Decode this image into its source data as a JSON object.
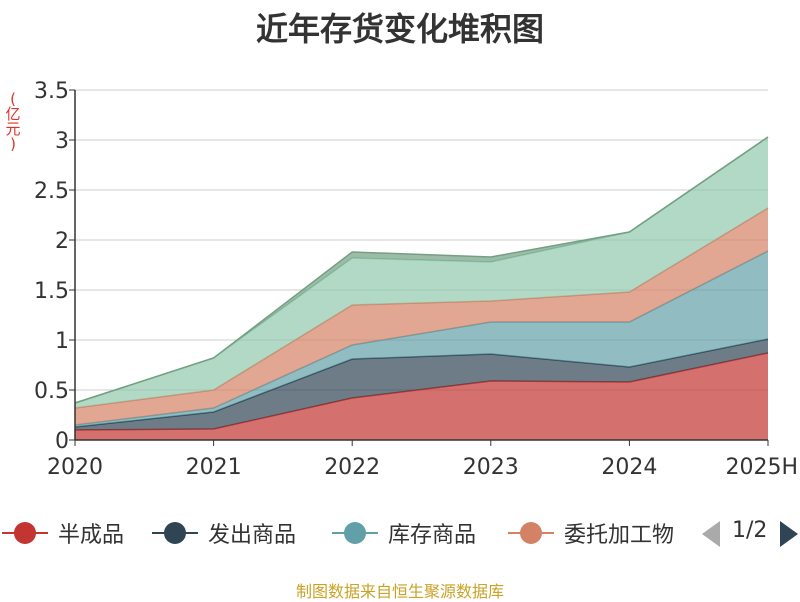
{
  "title": "近年存货变化堆积图",
  "unit_chars": [
    "(",
    "亿",
    "元",
    ")"
  ],
  "source": "制图数据来自恒生聚源数据库",
  "pager": {
    "text": "1/2"
  },
  "chart_data": {
    "type": "area",
    "stacked": true,
    "x": [
      "2020",
      "2021",
      "2022",
      "2023",
      "2024",
      "2025H"
    ],
    "ylim": [
      0,
      3.5
    ],
    "yticks": [
      "0",
      "0.5",
      "1",
      "1.5",
      "2",
      "2.5",
      "3",
      "3.5"
    ],
    "ytick_values": [
      0,
      0.5,
      1,
      1.5,
      2,
      2.5,
      3,
      3.5
    ],
    "series": [
      {
        "name": "半成品",
        "color": "#c23531",
        "values": [
          0.1,
          0.11,
          0.42,
          0.59,
          0.58,
          0.87
        ]
      },
      {
        "name": "发出商品",
        "color": "#2f4554",
        "values": [
          0.03,
          0.17,
          0.39,
          0.27,
          0.15,
          0.14
        ]
      },
      {
        "name": "库存商品",
        "color": "#61a0a8",
        "values": [
          0.02,
          0.04,
          0.14,
          0.32,
          0.45,
          0.88
        ]
      },
      {
        "name": "委托加工物",
        "color": "#d48265",
        "values": [
          0.17,
          0.18,
          0.4,
          0.21,
          0.3,
          0.43
        ]
      },
      {
        "name": "",
        "color": "#91c7ae",
        "values": [
          0.05,
          0.32,
          0.47,
          0.39,
          0.6,
          0.71
        ]
      },
      {
        "name": "",
        "color": "#749f83",
        "values": [
          0.0,
          0.0,
          0.06,
          0.05,
          0.0,
          0.0
        ]
      }
    ],
    "legend_visible": [
      "半成品",
      "发出商品",
      "库存商品",
      "委托加工物"
    ]
  }
}
